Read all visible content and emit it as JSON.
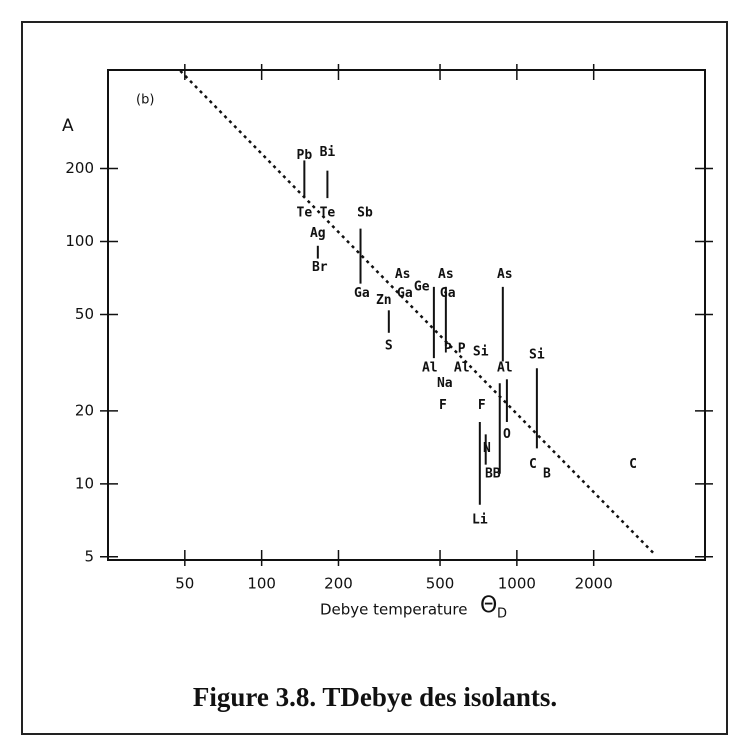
{
  "chart_data": {
    "type": "scatter",
    "title": "Figure 3.8. TDebye des isolants.",
    "panel_label": "(b)",
    "ylabel": "A",
    "xlabel": "Debye temperature",
    "xlabel_symbol": "Θ",
    "xlabel_sub": "D",
    "log_x": true,
    "log_y": true,
    "xlim": [
      25,
      5460
    ],
    "ylim": [
      4.85,
      510
    ],
    "xticks": [
      50,
      100,
      200,
      500,
      1000,
      2000
    ],
    "yticks": [
      5,
      10,
      20,
      50,
      100,
      200
    ],
    "color": "#111111",
    "points": {
      "labels": [
        "Pb",
        "Bi",
        "Te",
        "Te",
        "Ag",
        "Br",
        "Sb",
        "Ga",
        "Zn",
        "Ga",
        "Ge",
        "As",
        "As",
        "Ga",
        "S",
        "P",
        "P",
        "Si",
        "Al",
        "Al",
        "Na",
        "F",
        "As",
        "Al",
        "Si",
        "F",
        "O",
        "N",
        "BB",
        "Li",
        "C",
        "B",
        "C"
      ],
      "x": [
        147,
        181,
        147,
        181,
        166,
        169,
        254,
        247,
        301,
        364,
        424,
        357,
        527,
        536,
        315,
        536,
        608,
        722,
        456,
        608,
        522,
        513,
        897,
        897,
        1198,
        729,
        914,
        763,
        805,
        716,
        1156,
        1312,
        2851
      ],
      "y": [
        226,
        233,
        131,
        131,
        108,
        78,
        131,
        61,
        57,
        61,
        65,
        73,
        73,
        61,
        37,
        36,
        36,
        35,
        30,
        30,
        26,
        21,
        73,
        30,
        34,
        21,
        16,
        14,
        11,
        7.1,
        12,
        11,
        12
      ]
    },
    "bars": {
      "x": [
        147,
        181,
        166,
        244,
        315,
        473,
        527,
        881,
        914,
        857,
        716,
        755,
        1198
      ],
      "top": [
        216,
        196,
        96,
        113,
        52,
        65,
        65,
        65,
        27,
        26,
        18,
        16,
        30
      ],
      "bottom": [
        153,
        151,
        85,
        67,
        42,
        33,
        37,
        32,
        18,
        11,
        8.2,
        12,
        14
      ]
    },
    "fit_line": {
      "x": [
        48,
        3480
      ],
      "y": [
        506,
        5.1
      ]
    }
  }
}
